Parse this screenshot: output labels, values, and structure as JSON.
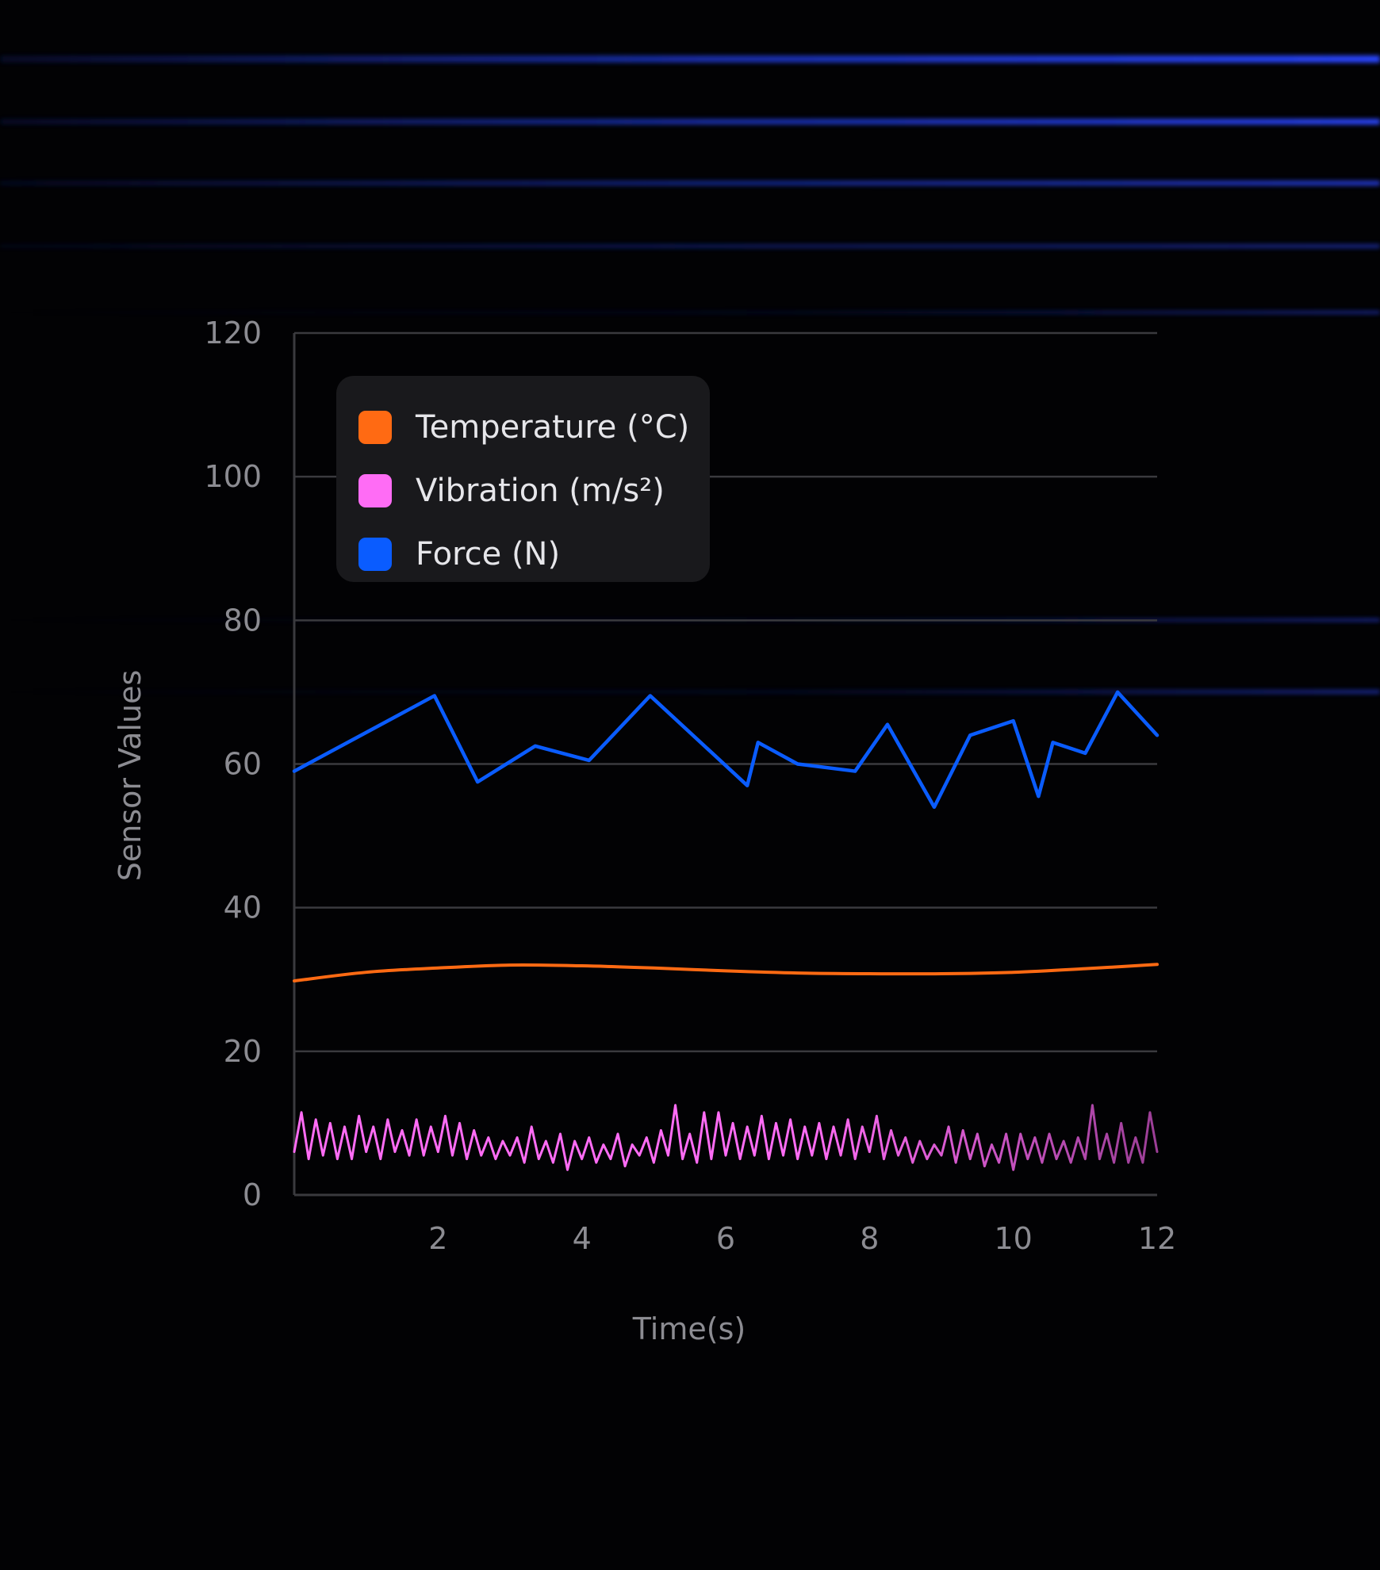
{
  "colors": {
    "background": "#020204",
    "grid": "#3a3a3e",
    "glow": "#1f3bd9"
  },
  "chart_data": {
    "type": "line",
    "title": "",
    "xlabel": "Time(s)",
    "ylabel": "Sensor Values",
    "xlim": [
      0,
      12
    ],
    "ylim": [
      0,
      120
    ],
    "x_ticks": [
      2,
      4,
      6,
      8,
      10,
      12
    ],
    "y_ticks": [
      0,
      20,
      40,
      60,
      80,
      100,
      120
    ],
    "grid": "horizontal",
    "legend_position": "top-left",
    "series": [
      {
        "name": "Temperature (°C)",
        "color": "#ff6a13",
        "x": [
          0,
          1,
          2,
          3,
          4,
          5,
          6,
          7,
          8,
          9,
          10,
          11,
          12
        ],
        "y": [
          29.8,
          31.0,
          31.6,
          32.0,
          31.9,
          31.6,
          31.2,
          30.9,
          30.8,
          30.8,
          31.0,
          31.5,
          32.1
        ]
      },
      {
        "name": "Vibration (m/s²)",
        "color": "#ff6cf5",
        "color_end": "#9b3e96",
        "x": [
          0,
          0.1,
          0.2,
          0.3,
          0.4,
          0.5,
          0.6,
          0.7,
          0.8,
          0.9,
          1.0,
          1.1,
          1.2,
          1.3,
          1.4,
          1.5,
          1.6,
          1.7,
          1.8,
          1.9,
          2.0,
          2.1,
          2.2,
          2.3,
          2.4,
          2.5,
          2.6,
          2.7,
          2.8,
          2.9,
          3.0,
          3.1,
          3.2,
          3.3,
          3.4,
          3.5,
          3.6,
          3.7,
          3.8,
          3.9,
          4.0,
          4.1,
          4.2,
          4.3,
          4.4,
          4.5,
          4.6,
          4.7,
          4.8,
          4.9,
          5.0,
          5.1,
          5.2,
          5.3,
          5.4,
          5.5,
          5.6,
          5.7,
          5.8,
          5.9,
          6.0,
          6.1,
          6.2,
          6.3,
          6.4,
          6.5,
          6.6,
          6.7,
          6.8,
          6.9,
          7.0,
          7.1,
          7.2,
          7.3,
          7.4,
          7.5,
          7.6,
          7.7,
          7.8,
          7.9,
          8.0,
          8.1,
          8.2,
          8.3,
          8.4,
          8.5,
          8.6,
          8.7,
          8.8,
          8.9,
          9.0,
          9.1,
          9.2,
          9.3,
          9.4,
          9.5,
          9.6,
          9.7,
          9.8,
          9.9,
          10.0,
          10.1,
          10.2,
          10.3,
          10.4,
          10.5,
          10.6,
          10.7,
          10.8,
          10.9,
          11.0,
          11.1,
          11.2,
          11.3,
          11.4,
          11.5,
          11.6,
          11.7,
          11.8,
          11.9,
          12.0
        ],
        "y": [
          6,
          11.5,
          5,
          10.5,
          5.5,
          10,
          5,
          9.5,
          5,
          11,
          6,
          9.5,
          5,
          10.5,
          6,
          9,
          5.5,
          10.5,
          5.5,
          9.5,
          6,
          11,
          5.5,
          10,
          5,
          9,
          5.5,
          8,
          5,
          7.5,
          5.5,
          8,
          4.5,
          9.5,
          5,
          7.5,
          4.5,
          8.5,
          3.5,
          7.5,
          5,
          8,
          4.5,
          7,
          5,
          8.5,
          4,
          7,
          5.5,
          8,
          4.5,
          9,
          5.5,
          12.5,
          5,
          8.5,
          4.5,
          11.5,
          5,
          11.5,
          5.5,
          10,
          5,
          9.5,
          5.5,
          11,
          5,
          10,
          5.5,
          10.5,
          5,
          9.5,
          5.5,
          10,
          5,
          9.5,
          5.5,
          10.5,
          5,
          9.5,
          6,
          11,
          5,
          9,
          5.5,
          8,
          4.5,
          7.5,
          5,
          7,
          5.5,
          9.5,
          4.5,
          9,
          5,
          8.5,
          4,
          7,
          4.5,
          8.5,
          3.5,
          8.5,
          5,
          8,
          4.5,
          8.5,
          5,
          7.5,
          4.5,
          8,
          5,
          12.5,
          5,
          8.5,
          4.5,
          10,
          4.5,
          8,
          4.5,
          11.5,
          6
        ]
      },
      {
        "name": "Force (N)",
        "color": "#0a5cff",
        "x": [
          0,
          1.95,
          2.55,
          3.35,
          4.1,
          4.95,
          6.3,
          6.45,
          7.0,
          7.8,
          8.25,
          8.9,
          9.4,
          10.0,
          10.35,
          10.55,
          11.0,
          11.45,
          12.0
        ],
        "y": [
          59,
          69.5,
          57.5,
          62.5,
          60.5,
          69.5,
          57,
          63,
          60,
          59,
          65.5,
          54,
          64,
          66,
          55.5,
          63,
          61.5,
          70,
          64
        ]
      }
    ]
  }
}
